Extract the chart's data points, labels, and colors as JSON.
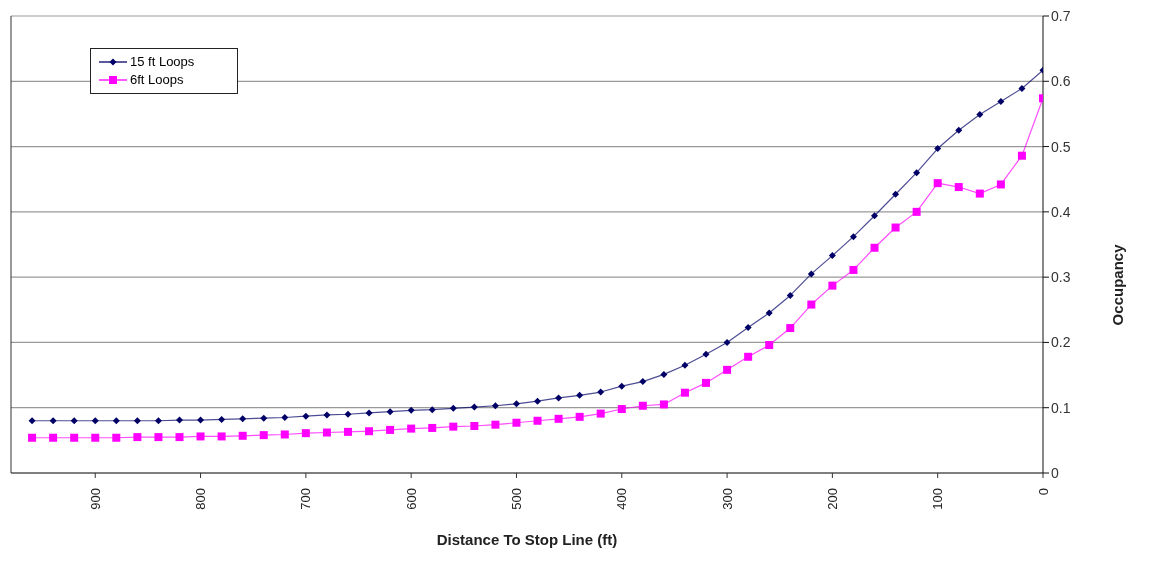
{
  "chart_data": {
    "type": "line",
    "xlabel": "Distance To Stop Line (ft)",
    "ylabel": "Occupancy",
    "x": [
      960,
      940,
      920,
      900,
      880,
      860,
      840,
      820,
      800,
      780,
      760,
      740,
      720,
      700,
      680,
      660,
      640,
      620,
      600,
      580,
      560,
      540,
      520,
      500,
      480,
      460,
      440,
      420,
      400,
      380,
      360,
      340,
      320,
      300,
      280,
      260,
      240,
      220,
      200,
      180,
      160,
      140,
      120,
      100,
      80,
      60,
      40,
      20,
      0
    ],
    "series": [
      {
        "name": "15 ft Loops",
        "color": "#000066",
        "marker": "diamond",
        "values": [
          0.08,
          0.08,
          0.08,
          0.08,
          0.08,
          0.08,
          0.08,
          0.081,
          0.081,
          0.082,
          0.083,
          0.084,
          0.085,
          0.087,
          0.089,
          0.09,
          0.092,
          0.094,
          0.096,
          0.097,
          0.099,
          0.101,
          0.103,
          0.106,
          0.11,
          0.115,
          0.119,
          0.124,
          0.133,
          0.14,
          0.151,
          0.165,
          0.182,
          0.2,
          0.223,
          0.245,
          0.272,
          0.305,
          0.333,
          0.362,
          0.394,
          0.427,
          0.46,
          0.497,
          0.525,
          0.549,
          0.569,
          0.589,
          0.617
        ]
      },
      {
        "name": "6ft Loops",
        "color": "#ff00ff",
        "marker": "square",
        "values": [
          0.054,
          0.054,
          0.054,
          0.054,
          0.054,
          0.055,
          0.055,
          0.055,
          0.056,
          0.056,
          0.057,
          0.058,
          0.059,
          0.061,
          0.062,
          0.063,
          0.064,
          0.066,
          0.068,
          0.069,
          0.071,
          0.072,
          0.074,
          0.077,
          0.08,
          0.083,
          0.086,
          0.091,
          0.098,
          0.103,
          0.105,
          0.123,
          0.138,
          0.158,
          0.178,
          0.196,
          0.222,
          0.258,
          0.287,
          0.311,
          0.345,
          0.376,
          0.4,
          0.444,
          0.438,
          0.428,
          0.442,
          0.486,
          0.574
        ]
      }
    ],
    "xlim": [
      980,
      0
    ],
    "xticks": [
      900,
      800,
      700,
      600,
      500,
      400,
      300,
      200,
      100,
      0
    ],
    "ylim": [
      0,
      0.7
    ],
    "yticks": [
      0,
      0.1,
      0.2,
      0.3,
      0.4,
      0.5,
      0.6,
      0.7
    ],
    "grid": "y",
    "legend": "top left",
    "line_style": "solid"
  }
}
